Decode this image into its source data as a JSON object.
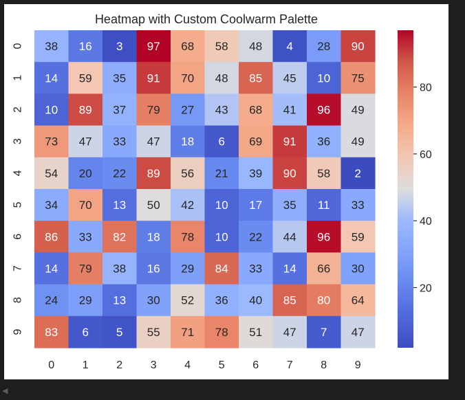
{
  "chart_data": {
    "type": "heatmap",
    "title": "Heatmap with Custom Coolwarm Palette",
    "x_labels": [
      "0",
      "1",
      "2",
      "3",
      "4",
      "5",
      "6",
      "7",
      "8",
      "9"
    ],
    "y_labels": [
      "0",
      "1",
      "2",
      "3",
      "4",
      "5",
      "6",
      "7",
      "8",
      "9"
    ],
    "values": [
      [
        38,
        16,
        3,
        97,
        68,
        58,
        48,
        4,
        28,
        90
      ],
      [
        14,
        59,
        35,
        91,
        70,
        48,
        85,
        45,
        10,
        75
      ],
      [
        10,
        89,
        37,
        79,
        27,
        43,
        68,
        41,
        96,
        49
      ],
      [
        73,
        47,
        33,
        47,
        18,
        6,
        69,
        91,
        36,
        49
      ],
      [
        54,
        20,
        22,
        89,
        56,
        21,
        39,
        90,
        58,
        2
      ],
      [
        34,
        70,
        13,
        50,
        42,
        10,
        17,
        35,
        11,
        33
      ],
      [
        86,
        33,
        82,
        18,
        78,
        10,
        22,
        44,
        96,
        59
      ],
      [
        14,
        79,
        38,
        16,
        29,
        84,
        33,
        14,
        66,
        30
      ],
      [
        24,
        29,
        13,
        30,
        52,
        36,
        40,
        85,
        80,
        64
      ],
      [
        83,
        6,
        5,
        55,
        71,
        78,
        51,
        47,
        7,
        47
      ]
    ],
    "colormap": "coolwarm",
    "vmin": 2,
    "vmax": 97,
    "colorbar_ticks": [
      20,
      40,
      60,
      80
    ],
    "colorbar_tick_labels": [
      "20",
      "40",
      "60",
      "80"
    ],
    "annotations": true
  }
}
